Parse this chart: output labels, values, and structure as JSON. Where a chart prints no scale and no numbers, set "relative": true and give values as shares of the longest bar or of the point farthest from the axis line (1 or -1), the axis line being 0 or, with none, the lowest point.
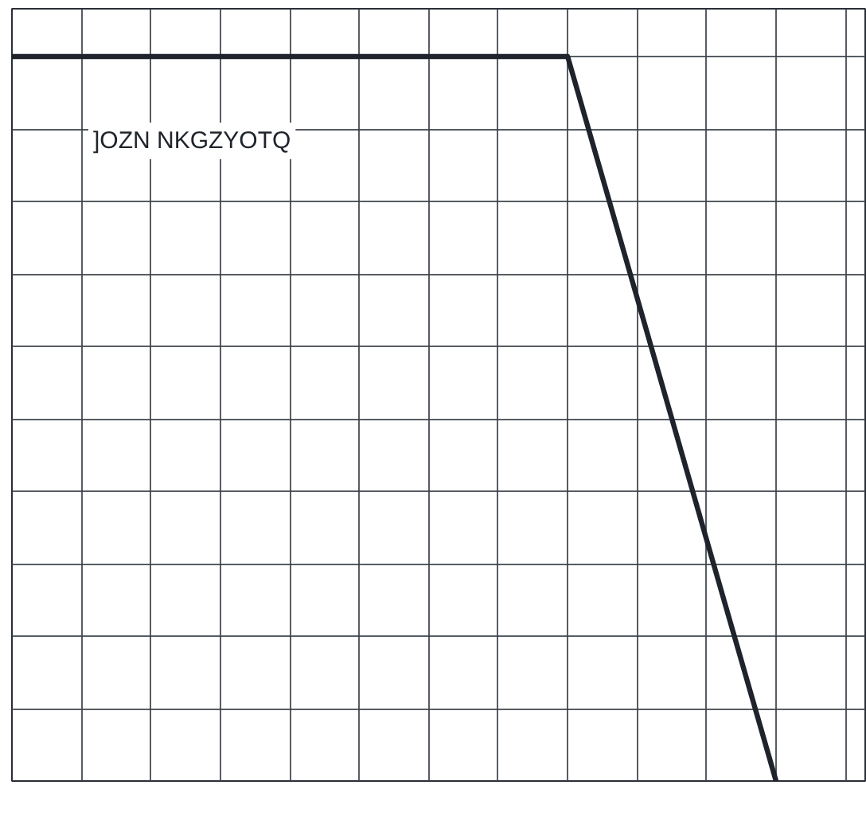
{
  "chart_data": {
    "type": "line",
    "relative": true,
    "grid": true,
    "tick_labels": false,
    "categories": [
      null,
      null,
      null,
      null,
      null,
      null,
      null,
      null,
      null,
      null,
      null,
      null
    ],
    "series": [
      {
        "color": "#1f232b",
        "values": [
          1,
          1,
          1,
          1,
          1,
          1,
          1,
          1,
          1,
          0.667,
          0.333,
          0
        ]
      }
    ],
    "annotations": [
      "]OZN NKGZYOTQ"
    ]
  }
}
